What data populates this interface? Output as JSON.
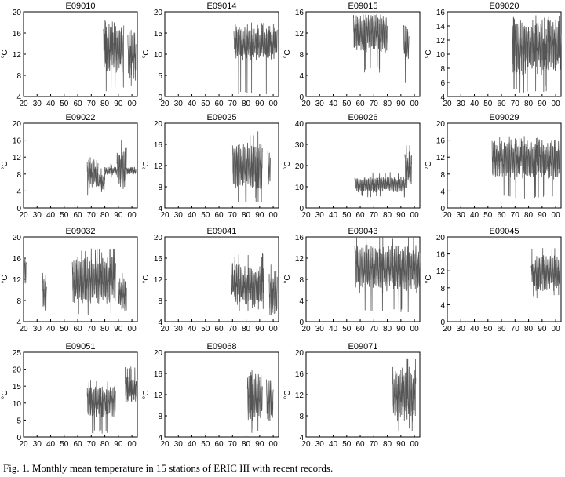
{
  "caption": "Fig. 1. Monthly mean temperature in 15 stations of ERIC III with recent records.",
  "chart_data": [
    {
      "type": "line",
      "title": "E09010",
      "ylabel": "°C",
      "ylim": [
        4,
        20
      ],
      "yticks": [
        4,
        8,
        12,
        16,
        20
      ],
      "xlim": [
        20,
        104
      ],
      "xticks": [
        "20",
        "30",
        "40",
        "50",
        "60",
        "70",
        "80",
        "90",
        "00"
      ],
      "series": [
        {
          "segments": [
            {
              "start": 79,
              "end": 94,
              "mean": 13.0,
              "amp": 3.2,
              "noise": 1.0,
              "min": 4.8,
              "max": 18.7
            },
            {
              "start": 97,
              "end": 103,
              "mean": 11.5,
              "amp": 2.8,
              "noise": 1.2,
              "min": 6.0,
              "max": 17.5
            }
          ]
        }
      ]
    },
    {
      "type": "line",
      "title": "E09014",
      "ylabel": "°C",
      "ylim": [
        0,
        20
      ],
      "yticks": [
        0,
        5,
        10,
        15,
        20
      ],
      "xlim": [
        20,
        104
      ],
      "xticks": [
        "20",
        "30",
        "40",
        "50",
        "60",
        "70",
        "80",
        "90",
        "00"
      ],
      "series": [
        {
          "segments": [
            {
              "start": 71,
              "end": 103,
              "mean": 12.5,
              "amp": 2.5,
              "noise": 1.0,
              "min": 0.5,
              "max": 17.5
            }
          ]
        }
      ]
    },
    {
      "type": "line",
      "title": "E09015",
      "ylabel": "°C",
      "ylim": [
        0,
        16
      ],
      "yticks": [
        0,
        4,
        8,
        12,
        16
      ],
      "xlim": [
        20,
        104
      ],
      "xticks": [
        "20",
        "30",
        "40",
        "50",
        "60",
        "70",
        "80",
        "90",
        "00"
      ],
      "series": [
        {
          "segments": [
            {
              "start": 55,
              "end": 80,
              "mean": 12.0,
              "amp": 2.5,
              "noise": 0.8,
              "min": 4.5,
              "max": 15.5
            },
            {
              "start": 92,
              "end": 96,
              "mean": 10.0,
              "amp": 2.8,
              "noise": 0.8,
              "min": 2.5,
              "max": 14.5
            }
          ]
        }
      ]
    },
    {
      "type": "line",
      "title": "E09020",
      "ylabel": "°C",
      "ylim": [
        4,
        16
      ],
      "yticks": [
        4,
        6,
        8,
        10,
        12,
        14,
        16
      ],
      "xlim": [
        20,
        104
      ],
      "xticks": [
        "20",
        "30",
        "40",
        "50",
        "60",
        "70",
        "80",
        "90",
        "00"
      ],
      "series": [
        {
          "segments": [
            {
              "start": 68,
              "end": 104,
              "mean": 11.0,
              "amp": 2.5,
              "noise": 1.0,
              "min": 4.5,
              "max": 15.5
            }
          ]
        }
      ]
    },
    {
      "type": "line",
      "title": "E09022",
      "ylabel": "°C",
      "ylim": [
        0,
        20
      ],
      "yticks": [
        0,
        4,
        8,
        12,
        16,
        20
      ],
      "xlim": [
        20,
        104
      ],
      "xticks": [
        "20",
        "30",
        "40",
        "50",
        "60",
        "70",
        "80",
        "90",
        "00"
      ],
      "series": [
        {
          "segments": [
            {
              "start": 67,
              "end": 75,
              "mean": 8.0,
              "amp": 2.0,
              "noise": 1.0,
              "min": 2.0,
              "max": 12.0
            },
            {
              "start": 75,
              "end": 80,
              "mean": 6.0,
              "amp": 1.5,
              "noise": 0.8,
              "min": 2.5,
              "max": 10.0
            },
            {
              "start": 80,
              "end": 89,
              "mean": 8.8,
              "amp": 0.6,
              "noise": 0.3,
              "min": 7.0,
              "max": 10.5
            },
            {
              "start": 89,
              "end": 96,
              "mean": 9.5,
              "amp": 3.0,
              "noise": 1.3,
              "min": 4.0,
              "max": 16.5
            },
            {
              "start": 96,
              "end": 103,
              "mean": 8.8,
              "amp": 0.5,
              "noise": 0.3,
              "min": 7.5,
              "max": 10.0
            }
          ]
        }
      ]
    },
    {
      "type": "line",
      "title": "E09025",
      "ylabel": "°C",
      "ylim": [
        4,
        20
      ],
      "yticks": [
        4,
        8,
        12,
        16,
        20
      ],
      "xlim": [
        20,
        104
      ],
      "xticks": [
        "20",
        "30",
        "40",
        "50",
        "60",
        "70",
        "80",
        "90",
        "00"
      ],
      "series": [
        {
          "segments": [
            {
              "start": 70,
              "end": 92,
              "mean": 12.0,
              "amp": 3.0,
              "noise": 1.0,
              "min": 5.0,
              "max": 18.5
            },
            {
              "start": 96,
              "end": 98,
              "mean": 11.0,
              "amp": 2.8,
              "noise": 1.0,
              "min": 7.0,
              "max": 15.0
            }
          ]
        }
      ]
    },
    {
      "type": "line",
      "title": "E09026",
      "ylabel": "°C",
      "ylim": [
        0,
        40
      ],
      "yticks": [
        0,
        10,
        20,
        30,
        40
      ],
      "xlim": [
        20,
        104
      ],
      "xticks": [
        "20",
        "30",
        "40",
        "50",
        "60",
        "70",
        "80",
        "90",
        "00"
      ],
      "series": [
        {
          "segments": [
            {
              "start": 56,
              "end": 93,
              "mean": 11.0,
              "amp": 2.5,
              "noise": 0.8,
              "min": 5.0,
              "max": 17.0
            },
            {
              "start": 93,
              "end": 98,
              "mean": 18.0,
              "amp": 6.0,
              "noise": 2.0,
              "min": 8.0,
              "max": 30.0
            }
          ]
        }
      ]
    },
    {
      "type": "line",
      "title": "E09029",
      "ylabel": "°C",
      "ylim": [
        0,
        20
      ],
      "yticks": [
        0,
        4,
        8,
        12,
        16,
        20
      ],
      "xlim": [
        20,
        104
      ],
      "xticks": [
        "20",
        "30",
        "40",
        "50",
        "60",
        "70",
        "80",
        "90",
        "00"
      ],
      "series": [
        {
          "segments": [
            {
              "start": 53,
              "end": 103,
              "mean": 11.5,
              "amp": 3.0,
              "noise": 1.2,
              "min": 2.0,
              "max": 17.0
            }
          ]
        }
      ]
    },
    {
      "type": "line",
      "title": "E09032",
      "ylabel": "°C",
      "ylim": [
        4,
        20
      ],
      "yticks": [
        4,
        8,
        12,
        16,
        20
      ],
      "xlim": [
        20,
        104
      ],
      "xticks": [
        "20",
        "30",
        "40",
        "50",
        "60",
        "70",
        "80",
        "90",
        "00"
      ],
      "series": [
        {
          "segments": [
            {
              "start": 20,
              "end": 22,
              "mean": 14.0,
              "amp": 2.0,
              "noise": 0.6,
              "min": 10.0,
              "max": 16.0
            },
            {
              "start": 34,
              "end": 37,
              "mean": 9.5,
              "amp": 2.5,
              "noise": 0.8,
              "min": 5.5,
              "max": 13.5
            },
            {
              "start": 56,
              "end": 88,
              "mean": 11.8,
              "amp": 3.0,
              "noise": 1.0,
              "min": 5.0,
              "max": 18.0
            },
            {
              "start": 90,
              "end": 96,
              "mean": 9.0,
              "amp": 2.0,
              "noise": 0.8,
              "min": 5.5,
              "max": 14.0
            }
          ]
        }
      ]
    },
    {
      "type": "line",
      "title": "E09041",
      "ylabel": "°C",
      "ylim": [
        4,
        20
      ],
      "yticks": [
        4,
        8,
        12,
        16,
        20
      ],
      "xlim": [
        20,
        104
      ],
      "xticks": [
        "20",
        "30",
        "40",
        "50",
        "60",
        "70",
        "80",
        "90",
        "00"
      ],
      "series": [
        {
          "segments": [
            {
              "start": 69,
              "end": 93,
              "mean": 11.0,
              "amp": 2.5,
              "noise": 1.0,
              "min": 6.0,
              "max": 17.0
            },
            {
              "start": 97,
              "end": 103,
              "mean": 9.0,
              "amp": 3.0,
              "noise": 1.0,
              "min": 4.0,
              "max": 15.0
            }
          ]
        }
      ]
    },
    {
      "type": "line",
      "title": "E09043",
      "ylabel": "°C",
      "ylim": [
        0,
        16
      ],
      "yticks": [
        0,
        4,
        8,
        12,
        16
      ],
      "xlim": [
        20,
        104
      ],
      "xticks": [
        "20",
        "30",
        "40",
        "50",
        "60",
        "70",
        "80",
        "90",
        "00"
      ],
      "series": [
        {
          "segments": [
            {
              "start": 56,
              "end": 104,
              "mean": 10.0,
              "amp": 3.0,
              "noise": 1.0,
              "min": 1.5,
              "max": 16.5
            }
          ]
        }
      ]
    },
    {
      "type": "line",
      "title": "E09045",
      "ylabel": "°C",
      "ylim": [
        0,
        20
      ],
      "yticks": [
        0,
        4,
        8,
        12,
        16,
        20
      ],
      "xlim": [
        20,
        104
      ],
      "xticks": [
        "20",
        "30",
        "40",
        "50",
        "60",
        "70",
        "80",
        "90",
        "00"
      ],
      "series": [
        {
          "segments": [
            {
              "start": 82,
              "end": 103,
              "mean": 11.5,
              "amp": 2.8,
              "noise": 1.0,
              "min": 5.5,
              "max": 18.0
            }
          ]
        }
      ]
    },
    {
      "type": "line",
      "title": "E09051",
      "ylabel": "°C",
      "ylim": [
        0,
        25
      ],
      "yticks": [
        0,
        5,
        10,
        15,
        20,
        25
      ],
      "xlim": [
        20,
        104
      ],
      "xticks": [
        "20",
        "30",
        "40",
        "50",
        "60",
        "70",
        "80",
        "90",
        "00"
      ],
      "series": [
        {
          "segments": [
            {
              "start": 67,
              "end": 88,
              "mean": 10.5,
              "amp": 3.2,
              "noise": 1.0,
              "min": 1.0,
              "max": 17.0
            },
            {
              "start": 95,
              "end": 104,
              "mean": 14.0,
              "amp": 2.5,
              "noise": 1.0,
              "min": 10.0,
              "max": 21.0
            }
          ]
        }
      ]
    },
    {
      "type": "line",
      "title": "E09068",
      "ylabel": "°C",
      "ylim": [
        4,
        20
      ],
      "yticks": [
        4,
        8,
        12,
        16,
        20
      ],
      "xlim": [
        20,
        104
      ],
      "xticks": [
        "20",
        "30",
        "40",
        "50",
        "60",
        "70",
        "80",
        "90",
        "00"
      ],
      "series": [
        {
          "segments": [
            {
              "start": 81,
              "end": 92,
              "mean": 11.5,
              "amp": 3.0,
              "noise": 1.0,
              "min": 4.5,
              "max": 17.0
            },
            {
              "start": 95,
              "end": 100,
              "mean": 11.0,
              "amp": 2.8,
              "noise": 0.8,
              "min": 7.0,
              "max": 16.5
            }
          ]
        }
      ]
    },
    {
      "type": "line",
      "title": "E09071",
      "ylabel": "°C",
      "ylim": [
        4,
        20
      ],
      "yticks": [
        4,
        8,
        12,
        16,
        20
      ],
      "xlim": [
        20,
        104
      ],
      "xticks": [
        "20",
        "30",
        "40",
        "50",
        "60",
        "70",
        "80",
        "90",
        "00"
      ],
      "series": [
        {
          "segments": [
            {
              "start": 84,
              "end": 101,
              "mean": 12.0,
              "amp": 3.5,
              "noise": 1.2,
              "min": 5.0,
              "max": 19.0
            }
          ]
        }
      ]
    }
  ]
}
